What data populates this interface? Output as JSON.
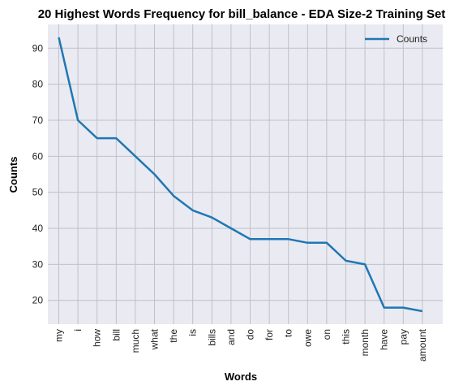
{
  "chart_data": {
    "type": "line",
    "title": "20 Highest Words Frequency for bill_balance - EDA Size-2 Training Set",
    "xlabel": "Words",
    "ylabel": "Counts",
    "categories": [
      "my",
      "i",
      "how",
      "bill",
      "much",
      "what",
      "the",
      "is",
      "bills",
      "and",
      "do",
      "for",
      "to",
      "owe",
      "on",
      "this",
      "month",
      "have",
      "pay",
      "amount"
    ],
    "series": [
      {
        "name": "Counts",
        "values": [
          93,
          70,
          65,
          65,
          60,
          55,
          49,
          45,
          43,
          40,
          37,
          37,
          37,
          36,
          36,
          31,
          30,
          18,
          18,
          17
        ]
      }
    ],
    "y_ticks": [
      20,
      30,
      40,
      50,
      60,
      70,
      80,
      90
    ],
    "ylim": [
      13.4,
      96.6
    ],
    "grid": true,
    "legend_position": "top-right",
    "colors": {
      "series": "#1f77b4",
      "plot_background": "#eaeaf2",
      "grid": "#c0c0c8"
    }
  }
}
